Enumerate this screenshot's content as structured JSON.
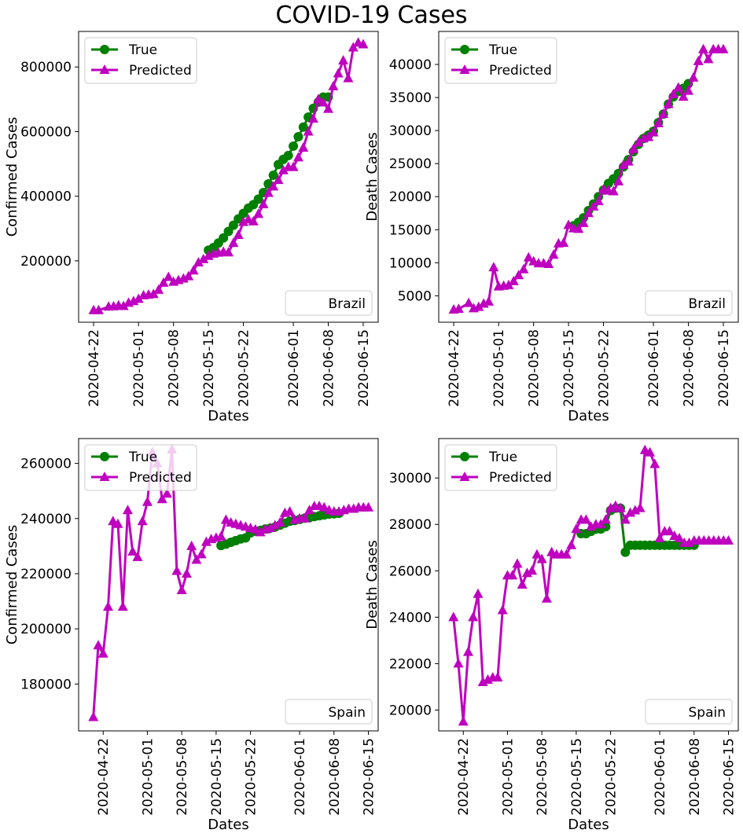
{
  "title": "COVID-19 Cases",
  "colors": {
    "true": "#008000",
    "predicted": "#bf00bf"
  },
  "chart_data": [
    {
      "type": "line",
      "xlabel": "Dates",
      "ylabel": "Confirmed Cases",
      "country_label": "Brazil",
      "xlim": [
        "2020-04-19",
        "2020-06-18"
      ],
      "ylim": [
        10000,
        910000
      ],
      "xticks": [
        "2020-04-22",
        "2020-05-01",
        "2020-05-08",
        "2020-05-15",
        "2020-05-22",
        "2020-06-01",
        "2020-06-08",
        "2020-06-15"
      ],
      "yticks": [
        200000,
        400000,
        600000,
        800000
      ],
      "ytick_labels": [
        "200000",
        "400000",
        "600000",
        "800000"
      ],
      "legend_position": "upper-left",
      "series": [
        {
          "name": "True",
          "marker": "circle",
          "x": [
            "2020-05-15",
            "2020-05-16",
            "2020-05-17",
            "2020-05-18",
            "2020-05-19",
            "2020-05-20",
            "2020-05-21",
            "2020-05-22",
            "2020-05-23",
            "2020-05-24",
            "2020-05-25",
            "2020-05-26",
            "2020-05-27",
            "2020-05-28",
            "2020-05-29",
            "2020-05-30",
            "2020-05-31",
            "2020-06-01",
            "2020-06-02",
            "2020-06-03",
            "2020-06-04",
            "2020-06-05",
            "2020-06-06",
            "2020-06-07",
            "2020-06-08"
          ],
          "y": [
            233000,
            241000,
            255000,
            271000,
            291000,
            310000,
            330000,
            347000,
            363000,
            374000,
            391000,
            411000,
            438000,
            465000,
            498000,
            514000,
            526000,
            555000,
            584000,
            614000,
            645000,
            672000,
            691000,
            707000,
            707000
          ]
        },
        {
          "name": "Predicted",
          "marker": "triangle",
          "x": [
            "2020-04-22",
            "2020-04-23",
            "2020-04-25",
            "2020-04-26",
            "2020-04-27",
            "2020-04-28",
            "2020-04-29",
            "2020-04-30",
            "2020-05-01",
            "2020-05-02",
            "2020-05-03",
            "2020-05-04",
            "2020-05-05",
            "2020-05-06",
            "2020-05-07",
            "2020-05-08",
            "2020-05-09",
            "2020-05-10",
            "2020-05-11",
            "2020-05-12",
            "2020-05-13",
            "2020-05-14",
            "2020-05-15",
            "2020-05-16",
            "2020-05-17",
            "2020-05-18",
            "2020-05-19",
            "2020-05-20",
            "2020-05-21",
            "2020-05-22",
            "2020-05-23",
            "2020-05-24",
            "2020-05-25",
            "2020-05-26",
            "2020-05-27",
            "2020-05-28",
            "2020-05-29",
            "2020-05-30",
            "2020-05-31",
            "2020-06-01",
            "2020-06-02",
            "2020-06-03",
            "2020-06-04",
            "2020-06-05",
            "2020-06-06",
            "2020-06-07",
            "2020-06-08",
            "2020-06-09",
            "2020-06-10",
            "2020-06-11",
            "2020-06-12",
            "2020-06-13",
            "2020-06-14",
            "2020-06-15"
          ],
          "y": [
            47000,
            47000,
            58000,
            59000,
            62000,
            60000,
            70000,
            75000,
            82000,
            93000,
            95000,
            97000,
            110000,
            132000,
            150000,
            135000,
            140000,
            145000,
            152000,
            170000,
            195000,
            205000,
            215000,
            222000,
            225000,
            228000,
            226000,
            255000,
            280000,
            320000,
            328000,
            322000,
            345000,
            375000,
            410000,
            430000,
            450000,
            480000,
            490000,
            490000,
            520000,
            550000,
            600000,
            640000,
            700000,
            690000,
            670000,
            740000,
            780000,
            820000,
            765000,
            860000,
            875000,
            870000
          ]
        }
      ]
    },
    {
      "type": "line",
      "xlabel": "Dates",
      "ylabel": "Death Cases",
      "country_label": "Brazil",
      "xlim": [
        "2020-04-19",
        "2020-06-18"
      ],
      "ylim": [
        1000,
        45000
      ],
      "xticks": [
        "2020-04-22",
        "2020-05-01",
        "2020-05-08",
        "2020-05-15",
        "2020-05-22",
        "2020-06-01",
        "2020-06-08",
        "2020-06-15"
      ],
      "yticks": [
        5000,
        10000,
        15000,
        20000,
        25000,
        30000,
        35000,
        40000
      ],
      "ytick_labels": [
        "5000",
        "10000",
        "15000",
        "20000",
        "25000",
        "30000",
        "35000",
        "40000"
      ],
      "legend_position": "upper-left",
      "series": [
        {
          "name": "True",
          "marker": "circle",
          "x": [
            "2020-05-16",
            "2020-05-17",
            "2020-05-18",
            "2020-05-19",
            "2020-05-20",
            "2020-05-21",
            "2020-05-22",
            "2020-05-23",
            "2020-05-24",
            "2020-05-25",
            "2020-05-26",
            "2020-05-27",
            "2020-05-28",
            "2020-05-29",
            "2020-05-30",
            "2020-05-31",
            "2020-06-01",
            "2020-06-02",
            "2020-06-03",
            "2020-06-04",
            "2020-06-05",
            "2020-06-06",
            "2020-06-07",
            "2020-06-08"
          ],
          "y": [
            15600,
            16100,
            16800,
            17900,
            18900,
            20000,
            21000,
            22000,
            22700,
            23500,
            24500,
            25600,
            26800,
            27900,
            28800,
            29300,
            29900,
            31200,
            32500,
            34000,
            35100,
            35900,
            36400,
            37100
          ]
        },
        {
          "name": "Predicted",
          "marker": "triangle",
          "x": [
            "2020-04-22",
            "2020-04-23",
            "2020-04-25",
            "2020-04-26",
            "2020-04-27",
            "2020-04-28",
            "2020-04-29",
            "2020-04-30",
            "2020-05-01",
            "2020-05-02",
            "2020-05-03",
            "2020-05-04",
            "2020-05-05",
            "2020-05-06",
            "2020-05-07",
            "2020-05-08",
            "2020-05-09",
            "2020-05-10",
            "2020-05-11",
            "2020-05-12",
            "2020-05-13",
            "2020-05-14",
            "2020-05-15",
            "2020-05-16",
            "2020-05-17",
            "2020-05-18",
            "2020-05-19",
            "2020-05-20",
            "2020-05-21",
            "2020-05-22",
            "2020-05-23",
            "2020-05-24",
            "2020-05-25",
            "2020-05-26",
            "2020-05-27",
            "2020-05-28",
            "2020-05-29",
            "2020-05-30",
            "2020-05-31",
            "2020-06-01",
            "2020-06-02",
            "2020-06-03",
            "2020-06-04",
            "2020-06-05",
            "2020-06-06",
            "2020-06-07",
            "2020-06-08",
            "2020-06-09",
            "2020-06-10",
            "2020-06-11",
            "2020-06-12",
            "2020-06-13",
            "2020-06-14",
            "2020-06-15"
          ],
          "y": [
            2900,
            3000,
            3900,
            3100,
            3300,
            3800,
            4100,
            9300,
            6400,
            6500,
            6600,
            7200,
            8100,
            9000,
            10800,
            10200,
            9900,
            9900,
            9800,
            11200,
            12900,
            13000,
            15700,
            15200,
            15100,
            16000,
            17500,
            18500,
            19300,
            21100,
            20900,
            20800,
            22300,
            24800,
            25300,
            27200,
            28200,
            28800,
            29000,
            29700,
            31100,
            32500,
            34000,
            35500,
            36500,
            35100,
            36000,
            38000,
            40500,
            42300,
            40800,
            42300,
            42300,
            42300
          ]
        }
      ]
    },
    {
      "type": "line",
      "xlabel": "Dates",
      "ylabel": "Confirmed Cases",
      "country_label": "Spain",
      "xlim": [
        "2020-04-17",
        "2020-06-17"
      ],
      "ylim": [
        163000,
        269000
      ],
      "xticks": [
        "2020-04-22",
        "2020-05-01",
        "2020-05-08",
        "2020-05-15",
        "2020-05-22",
        "2020-06-01",
        "2020-06-08",
        "2020-06-15"
      ],
      "yticks": [
        180000,
        200000,
        220000,
        240000,
        260000
      ],
      "ytick_labels": [
        "180000",
        "200000",
        "220000",
        "240000",
        "260000"
      ],
      "legend_position": "upper-left",
      "series": [
        {
          "name": "True",
          "marker": "circle",
          "x": [
            "2020-05-16",
            "2020-05-17",
            "2020-05-18",
            "2020-05-19",
            "2020-05-20",
            "2020-05-21",
            "2020-05-22",
            "2020-05-23",
            "2020-05-24",
            "2020-05-25",
            "2020-05-26",
            "2020-05-27",
            "2020-05-28",
            "2020-05-29",
            "2020-05-30",
            "2020-05-31",
            "2020-06-01",
            "2020-06-02",
            "2020-06-03",
            "2020-06-04",
            "2020-06-05",
            "2020-06-06",
            "2020-06-07",
            "2020-06-08",
            "2020-06-09"
          ],
          "y": [
            230200,
            230700,
            231400,
            232000,
            232600,
            233000,
            234800,
            235400,
            235700,
            236200,
            236500,
            236900,
            237600,
            238300,
            239000,
            239300,
            239700,
            240100,
            240300,
            240700,
            241000,
            241300,
            241600,
            241700,
            241900
          ]
        },
        {
          "name": "Predicted",
          "marker": "triangle",
          "x": [
            "2020-04-20",
            "2020-04-21",
            "2020-04-22",
            "2020-04-23",
            "2020-04-24",
            "2020-04-25",
            "2020-04-26",
            "2020-04-27",
            "2020-04-28",
            "2020-04-29",
            "2020-04-30",
            "2020-05-01",
            "2020-05-02",
            "2020-05-03",
            "2020-05-04",
            "2020-05-05",
            "2020-05-06",
            "2020-05-07",
            "2020-05-08",
            "2020-05-09",
            "2020-05-10",
            "2020-05-11",
            "2020-05-12",
            "2020-05-13",
            "2020-05-14",
            "2020-05-15",
            "2020-05-16",
            "2020-05-17",
            "2020-05-18",
            "2020-05-19",
            "2020-05-20",
            "2020-05-21",
            "2020-05-22",
            "2020-05-23",
            "2020-05-24",
            "2020-05-25",
            "2020-05-26",
            "2020-05-27",
            "2020-05-28",
            "2020-05-29",
            "2020-05-30",
            "2020-05-31",
            "2020-06-01",
            "2020-06-02",
            "2020-06-03",
            "2020-06-04",
            "2020-06-05",
            "2020-06-06",
            "2020-06-07",
            "2020-06-08",
            "2020-06-09",
            "2020-06-10",
            "2020-06-11",
            "2020-06-12",
            "2020-06-13",
            "2020-06-14",
            "2020-06-15"
          ],
          "y": [
            168000,
            194000,
            191000,
            208000,
            239000,
            238000,
            208000,
            243000,
            228000,
            226000,
            239000,
            246000,
            264000,
            260000,
            247000,
            249000,
            265000,
            221000,
            214000,
            220000,
            230000,
            225000,
            227000,
            231500,
            232500,
            233000,
            233500,
            239500,
            238500,
            238000,
            237500,
            237000,
            236500,
            236000,
            235000,
            236000,
            236500,
            237500,
            238500,
            242000,
            242500,
            239500,
            240000,
            240000,
            243000,
            244500,
            244500,
            244000,
            243000,
            242500,
            242500,
            243000,
            243500,
            243500,
            244000,
            244000,
            244000
          ]
        }
      ]
    },
    {
      "type": "line",
      "xlabel": "Dates",
      "ylabel": "Death Cases",
      "country_label": "Spain",
      "xlim": [
        "2020-04-17",
        "2020-06-17"
      ],
      "ylim": [
        19100,
        31700
      ],
      "xticks": [
        "2020-04-22",
        "2020-05-01",
        "2020-05-08",
        "2020-05-15",
        "2020-05-22",
        "2020-06-01",
        "2020-06-08",
        "2020-06-15"
      ],
      "yticks": [
        20000,
        22000,
        24000,
        26000,
        28000,
        30000
      ],
      "ytick_labels": [
        "20000",
        "22000",
        "24000",
        "26000",
        "28000",
        "30000"
      ],
      "legend_position": "upper-left",
      "series": [
        {
          "name": "True",
          "marker": "circle",
          "x": [
            "2020-05-16",
            "2020-05-17",
            "2020-05-18",
            "2020-05-19",
            "2020-05-20",
            "2020-05-21",
            "2020-05-22",
            "2020-05-23",
            "2020-05-24",
            "2020-05-25",
            "2020-05-26",
            "2020-05-27",
            "2020-05-28",
            "2020-05-29",
            "2020-05-30",
            "2020-05-31",
            "2020-06-01",
            "2020-06-02",
            "2020-06-03",
            "2020-06-04",
            "2020-06-05",
            "2020-06-06",
            "2020-06-07",
            "2020-06-08"
          ],
          "y": [
            27600,
            27600,
            27700,
            27800,
            27800,
            27900,
            28600,
            28700,
            28700,
            26800,
            27100,
            27100,
            27100,
            27100,
            27100,
            27100,
            27100,
            27100,
            27100,
            27100,
            27100,
            27100,
            27100,
            27100
          ]
        },
        {
          "name": "Predicted",
          "marker": "triangle",
          "x": [
            "2020-04-20",
            "2020-04-21",
            "2020-04-22",
            "2020-04-23",
            "2020-04-24",
            "2020-04-25",
            "2020-04-26",
            "2020-04-27",
            "2020-04-28",
            "2020-04-29",
            "2020-04-30",
            "2020-05-01",
            "2020-05-02",
            "2020-05-03",
            "2020-05-04",
            "2020-05-05",
            "2020-05-06",
            "2020-05-07",
            "2020-05-08",
            "2020-05-09",
            "2020-05-10",
            "2020-05-11",
            "2020-05-12",
            "2020-05-13",
            "2020-05-14",
            "2020-05-15",
            "2020-05-16",
            "2020-05-17",
            "2020-05-18",
            "2020-05-19",
            "2020-05-20",
            "2020-05-21",
            "2020-05-22",
            "2020-05-23",
            "2020-05-24",
            "2020-05-25",
            "2020-05-26",
            "2020-05-27",
            "2020-05-28",
            "2020-05-29",
            "2020-05-30",
            "2020-05-31",
            "2020-06-01",
            "2020-06-02",
            "2020-06-03",
            "2020-06-04",
            "2020-06-05",
            "2020-06-06",
            "2020-06-07",
            "2020-06-08",
            "2020-06-09",
            "2020-06-10",
            "2020-06-11",
            "2020-06-12",
            "2020-06-13",
            "2020-06-14",
            "2020-06-15"
          ],
          "y": [
            24000,
            22000,
            19500,
            22500,
            24000,
            25000,
            21200,
            21300,
            21400,
            21400,
            24300,
            25800,
            25800,
            26300,
            25400,
            25900,
            26000,
            26700,
            26500,
            24800,
            26800,
            26700,
            26700,
            26700,
            27100,
            27800,
            28200,
            28200,
            27900,
            28000,
            28000,
            28200,
            28700,
            28800,
            28700,
            28200,
            28500,
            28600,
            28700,
            31200,
            31100,
            30600,
            27400,
            27700,
            27700,
            27500,
            27400,
            27200,
            27200,
            27300,
            27300,
            27300,
            27300,
            27300,
            27300,
            27300,
            27300
          ]
        }
      ]
    }
  ]
}
